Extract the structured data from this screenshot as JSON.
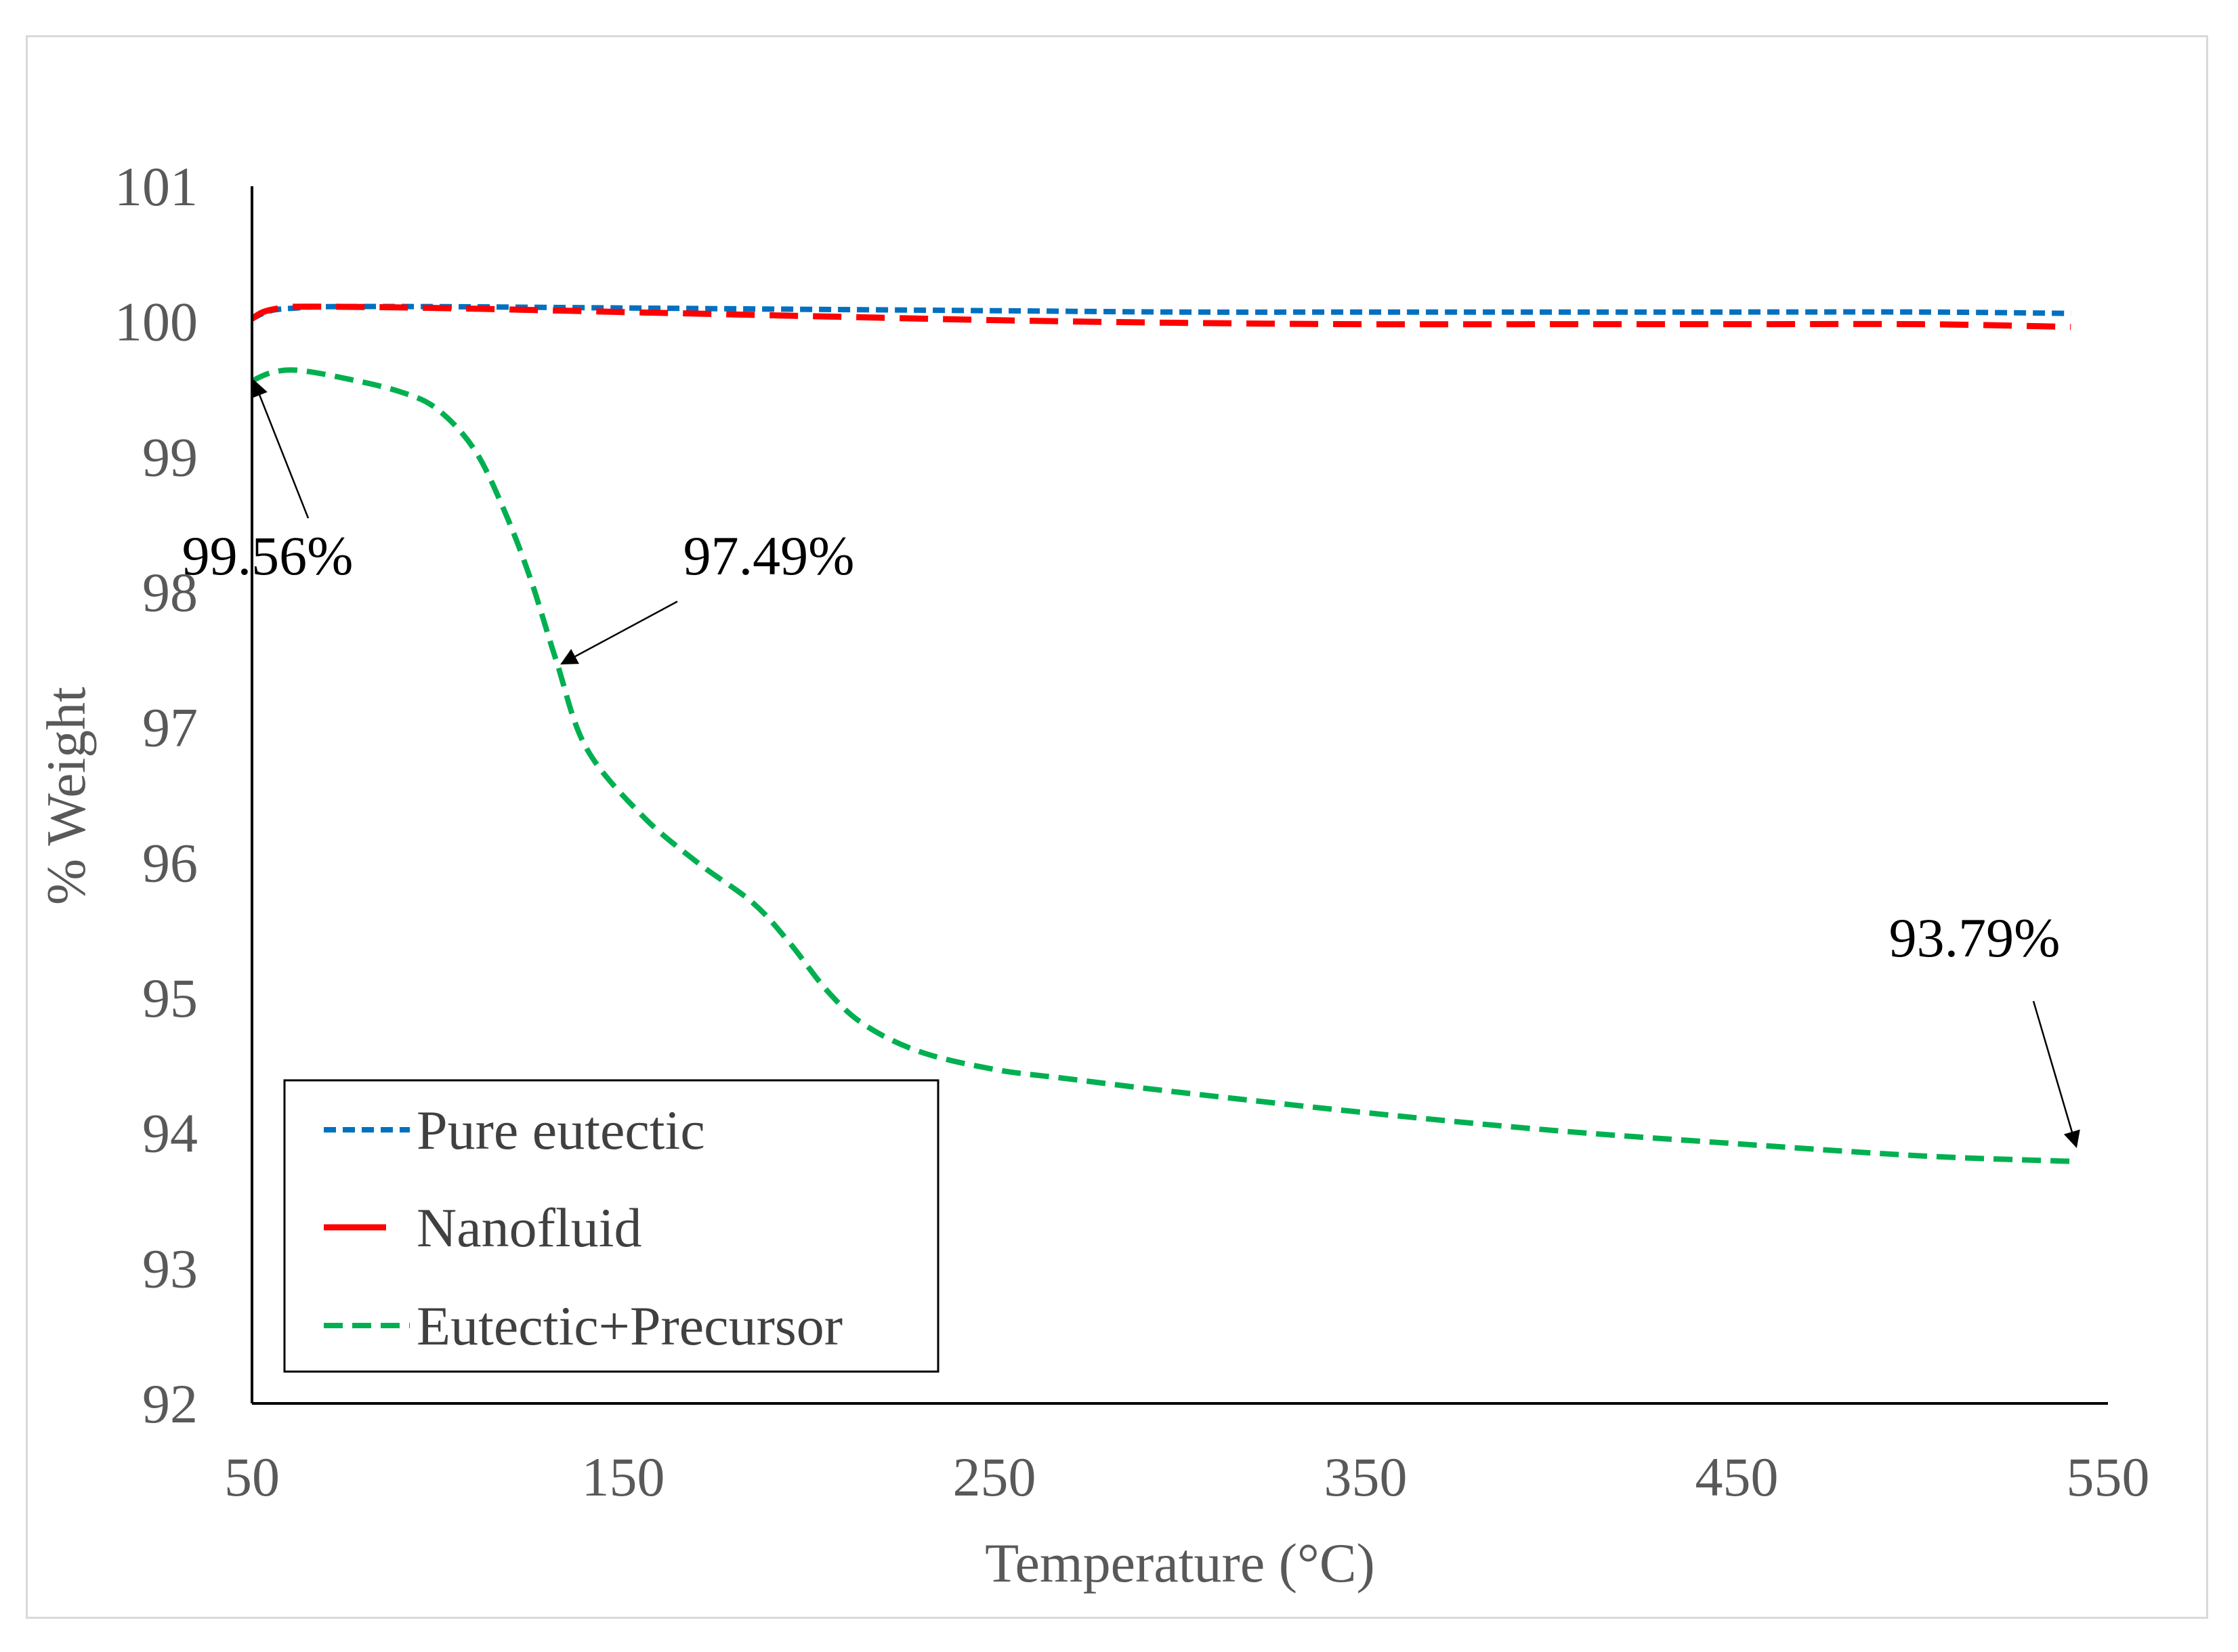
{
  "chart_data": {
    "type": "line",
    "title": "",
    "xlabel": "Temperature (°C)",
    "ylabel": "% Weight",
    "xlim": [
      50,
      550
    ],
    "ylim": [
      92,
      101
    ],
    "xticks": [
      50,
      150,
      250,
      350,
      450,
      550
    ],
    "yticks": [
      92,
      93,
      94,
      95,
      96,
      97,
      98,
      99,
      100,
      101
    ],
    "grid": false,
    "legend_position": "bottom-left",
    "series": [
      {
        "name": "Pure eutectic",
        "color": "#0070C0",
        "dash": "short-dash",
        "x": [
          50,
          55,
          62,
          70,
          100,
          150,
          200,
          250,
          300,
          350,
          400,
          450,
          500,
          540
        ],
        "y": [
          100.02,
          100.08,
          100.1,
          100.11,
          100.11,
          100.1,
          100.09,
          100.08,
          100.07,
          100.07,
          100.07,
          100.07,
          100.07,
          100.06
        ]
      },
      {
        "name": "Nanofluid",
        "color": "#FF0000",
        "dash": "long-dash",
        "x": [
          50,
          53,
          58,
          65,
          100,
          150,
          200,
          250,
          300,
          350,
          400,
          450,
          500,
          540
        ],
        "y": [
          100.02,
          100.07,
          100.1,
          100.11,
          100.1,
          100.07,
          100.04,
          100.01,
          99.99,
          99.98,
          99.98,
          99.98,
          99.98,
          99.96
        ]
      },
      {
        "name": "Eutectic+Precursor",
        "color": "#00B050",
        "dash": "medium-dash",
        "x": [
          50,
          55,
          62,
          75,
          90,
          100,
          110,
          118,
          125,
          132,
          140,
          155,
          170,
          185,
          195,
          205,
          215,
          230,
          250,
          270,
          300,
          350,
          400,
          450,
          500,
          540
        ],
        "y": [
          99.56,
          99.62,
          99.64,
          99.58,
          99.48,
          99.35,
          99.05,
          98.6,
          98.1,
          97.49,
          96.85,
          96.35,
          96.0,
          95.7,
          95.4,
          95.05,
          94.8,
          94.6,
          94.47,
          94.4,
          94.3,
          94.15,
          94.02,
          93.92,
          93.83,
          93.79
        ]
      }
    ],
    "annotations": [
      {
        "text": "99.56%",
        "x": 50,
        "y": 99.56
      },
      {
        "text": "97.49%",
        "x": 132,
        "y": 97.49
      },
      {
        "text": "93.79%",
        "x": 540,
        "y": 93.79
      }
    ]
  }
}
